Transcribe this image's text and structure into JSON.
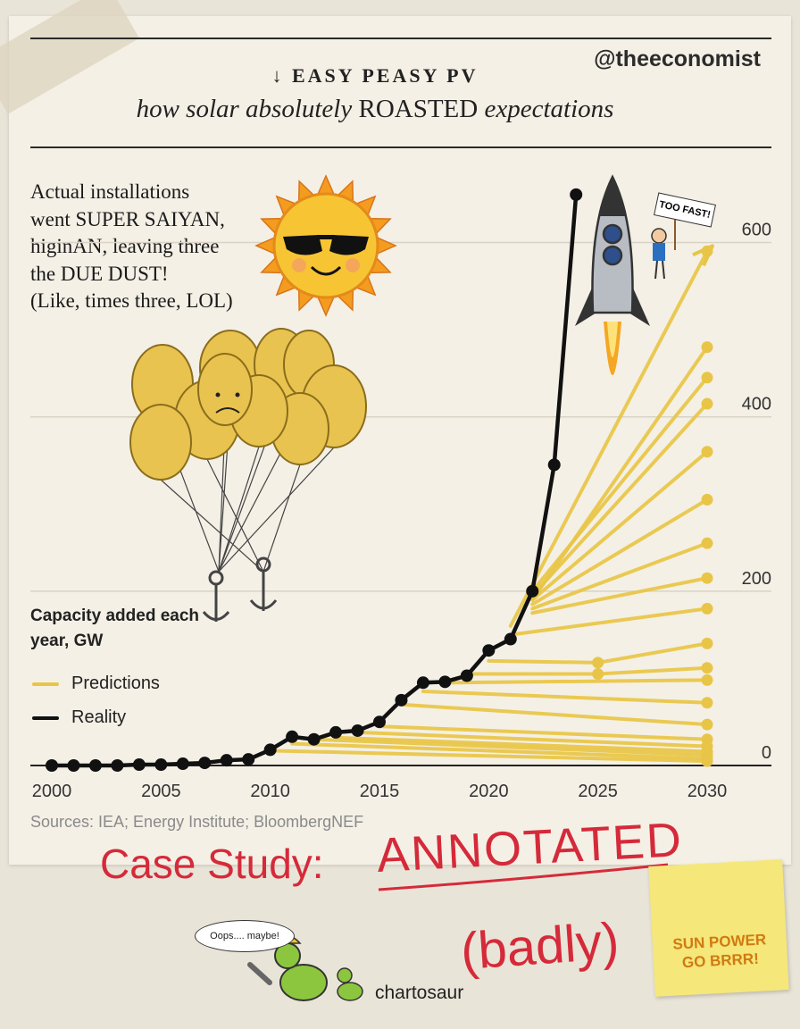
{
  "header": {
    "handle": "@theeconomist",
    "arrow": "↓",
    "subtitle_a": "how solar absolutely",
    "subtitle_b": "ROASTED",
    "subtitle_c": "expectations"
  },
  "annotation": {
    "line1": "Actual installations",
    "line2": "went SUPER SAIYAN,",
    "line3": "higinAN, leaving three",
    "line4": "the DUE DUST!",
    "line5": "(Like, times three, LOL)"
  },
  "doodles": {
    "sign": "TOO FAST!",
    "speech": "Oops.... maybe!",
    "brand": "chartosaur"
  },
  "overlay": {
    "case_study": "Case Study:",
    "annotated": "ANNOTATED",
    "badly": "(badly)",
    "sticky_line1": "SUN POWER",
    "sticky_line2": "GO BRRR!"
  },
  "colors": {
    "reality": "#111111",
    "predictions": "#e8c547",
    "grid": "#d9d3c5",
    "annotation_red": "#d52a3a"
  },
  "chart_data": {
    "type": "line",
    "title": "EASY PEASY PV",
    "ylabel": "Capacity added each year, GW",
    "source": "Sources: IEA; Energy Institute; BloombergNEF",
    "xlim": [
      2000,
      2030
    ],
    "ylim": [
      0,
      660
    ],
    "x_ticks": [
      2000,
      2005,
      2010,
      2015,
      2020,
      2025,
      2030
    ],
    "y_ticks": [
      0,
      200,
      400,
      600
    ],
    "series": [
      {
        "name": "Reality",
        "x": [
          2000,
          2001,
          2002,
          2003,
          2004,
          2005,
          2006,
          2007,
          2008,
          2009,
          2010,
          2011,
          2012,
          2013,
          2014,
          2015,
          2016,
          2017,
          2018,
          2019,
          2020,
          2021,
          2022,
          2023,
          2024
        ],
        "values": [
          0,
          0,
          0,
          0,
          1,
          1,
          2,
          3,
          6,
          7,
          18,
          33,
          30,
          38,
          40,
          50,
          75,
          95,
          96,
          103,
          132,
          145,
          200,
          345,
          655
        ]
      },
      {
        "name": "Predictions",
        "forecasts": [
          {
            "x": [
              2021,
              2030
            ],
            "values": [
              160,
              590
            ]
          },
          {
            "x": [
              2022,
              2030
            ],
            "values": [
              190,
              480
            ]
          },
          {
            "x": [
              2022,
              2030
            ],
            "values": [
              200,
              445
            ]
          },
          {
            "x": [
              2022,
              2030
            ],
            "values": [
              195,
              415
            ]
          },
          {
            "x": [
              2022,
              2030
            ],
            "values": [
              190,
              360
            ]
          },
          {
            "x": [
              2022,
              2030
            ],
            "values": [
              185,
              305
            ]
          },
          {
            "x": [
              2022,
              2030
            ],
            "values": [
              180,
              255
            ]
          },
          {
            "x": [
              2022,
              2030
            ],
            "values": [
              175,
              215
            ]
          },
          {
            "x": [
              2021,
              2030
            ],
            "values": [
              150,
              180
            ]
          },
          {
            "x": [
              2020,
              2025,
              2030
            ],
            "values": [
              120,
              118,
              140
            ]
          },
          {
            "x": [
              2019,
              2025,
              2030
            ],
            "values": [
              105,
              105,
              112
            ]
          },
          {
            "x": [
              2018,
              2030
            ],
            "values": [
              95,
              98
            ]
          },
          {
            "x": [
              2017,
              2030
            ],
            "values": [
              85,
              72
            ]
          },
          {
            "x": [
              2016,
              2030
            ],
            "values": [
              70,
              47
            ]
          },
          {
            "x": [
              2015,
              2030
            ],
            "values": [
              45,
              30
            ]
          },
          {
            "x": [
              2014,
              2030
            ],
            "values": [
              38,
              22
            ]
          },
          {
            "x": [
              2013,
              2030
            ],
            "values": [
              32,
              16
            ]
          },
          {
            "x": [
              2012,
              2030
            ],
            "values": [
              30,
              12
            ]
          },
          {
            "x": [
              2011,
              2030
            ],
            "values": [
              25,
              8
            ]
          },
          {
            "x": [
              2010,
              2030
            ],
            "values": [
              17,
              5
            ]
          }
        ]
      }
    ]
  }
}
